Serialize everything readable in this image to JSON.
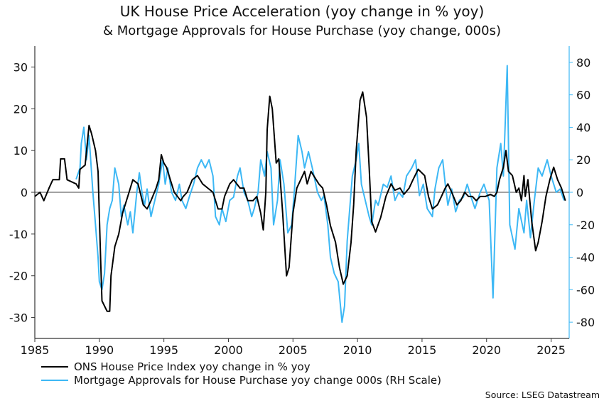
{
  "chart_data": {
    "type": "line",
    "title": "UK House Price Acceleration (yoy change in % yoy)",
    "subtitle": "& Mortgage Approvals for House Purchase (yoy change, 000s)",
    "xlabel": "",
    "ylabel": "",
    "xlim": [
      1985,
      2026.4
    ],
    "ylim_left": [
      -35,
      35
    ],
    "ylim_right": [
      -90,
      90
    ],
    "x_ticks": [
      "1985",
      "1990",
      "1995",
      "2000",
      "2005",
      "2010",
      "2015",
      "2020",
      "2025"
    ],
    "y_ticks_left": [
      "30",
      "20",
      "10",
      "0",
      "-10",
      "-20",
      "-30"
    ],
    "y_ticks_right": [
      "80",
      "60",
      "40",
      "20",
      "0",
      "-20",
      "-40",
      "-60",
      "-80"
    ],
    "legend_position": "bottom-left",
    "source": "Source: LSEG Datastream",
    "colors": {
      "left": "#000000",
      "right": "#3db8f5"
    },
    "series": [
      {
        "name": "ONS House Price Index yoy change in % yoy",
        "axis": "left",
        "points": [
          [
            1985.0,
            -1
          ],
          [
            1985.4,
            0
          ],
          [
            1985.7,
            -2
          ],
          [
            1986.1,
            1
          ],
          [
            1986.4,
            3
          ],
          [
            1986.9,
            3
          ],
          [
            1987.0,
            8
          ],
          [
            1987.3,
            8
          ],
          [
            1987.5,
            3
          ],
          [
            1988.2,
            2
          ],
          [
            1988.4,
            1
          ],
          [
            1988.5,
            5.5
          ],
          [
            1988.9,
            6.5
          ],
          [
            1989.2,
            16
          ],
          [
            1989.4,
            14
          ],
          [
            1989.7,
            10
          ],
          [
            1989.9,
            5
          ],
          [
            1990.1,
            -16
          ],
          [
            1990.2,
            -26
          ],
          [
            1990.6,
            -28.5
          ],
          [
            1990.8,
            -28.5
          ],
          [
            1990.9,
            -20
          ],
          [
            1991.2,
            -13
          ],
          [
            1991.5,
            -10
          ],
          [
            1991.8,
            -5
          ],
          [
            1992.3,
            0
          ],
          [
            1992.6,
            3
          ],
          [
            1993.0,
            2
          ],
          [
            1993.4,
            -3
          ],
          [
            1993.7,
            -4
          ],
          [
            1994.0,
            -2
          ],
          [
            1994.4,
            1
          ],
          [
            1994.6,
            3
          ],
          [
            1994.8,
            9
          ],
          [
            1995.0,
            7
          ],
          [
            1995.2,
            6
          ],
          [
            1995.5,
            3
          ],
          [
            1995.8,
            0
          ],
          [
            1996.3,
            -2
          ],
          [
            1996.5,
            -1
          ],
          [
            1996.8,
            0
          ],
          [
            1997.2,
            3
          ],
          [
            1997.6,
            4
          ],
          [
            1998.0,
            2
          ],
          [
            1998.4,
            1
          ],
          [
            1998.8,
            0
          ],
          [
            1999.2,
            -4
          ],
          [
            1999.5,
            -4
          ],
          [
            1999.7,
            -1
          ],
          [
            2000.1,
            2
          ],
          [
            2000.4,
            3
          ],
          [
            2000.9,
            1
          ],
          [
            2001.2,
            1
          ],
          [
            2001.5,
            -2
          ],
          [
            2001.9,
            -2
          ],
          [
            2002.2,
            -1
          ],
          [
            2002.5,
            -5
          ],
          [
            2002.7,
            -9
          ],
          [
            2002.9,
            0
          ],
          [
            2003.0,
            15
          ],
          [
            2003.2,
            23
          ],
          [
            2003.4,
            20
          ],
          [
            2003.7,
            7
          ],
          [
            2003.9,
            8
          ],
          [
            2004.2,
            -5
          ],
          [
            2004.5,
            -20
          ],
          [
            2004.7,
            -18
          ],
          [
            2005.0,
            -5
          ],
          [
            2005.3,
            1
          ],
          [
            2005.6,
            3
          ],
          [
            2005.9,
            5
          ],
          [
            2006.1,
            2
          ],
          [
            2006.4,
            5
          ],
          [
            2006.8,
            3
          ],
          [
            2007.0,
            2
          ],
          [
            2007.3,
            1
          ],
          [
            2007.6,
            -3
          ],
          [
            2007.9,
            -8
          ],
          [
            2008.3,
            -12
          ],
          [
            2008.6,
            -18
          ],
          [
            2008.9,
            -22
          ],
          [
            2009.2,
            -20
          ],
          [
            2009.5,
            -12
          ],
          [
            2009.7,
            -3
          ],
          [
            2009.9,
            10
          ],
          [
            2010.2,
            22
          ],
          [
            2010.4,
            24
          ],
          [
            2010.7,
            18
          ],
          [
            2010.9,
            6
          ],
          [
            2011.1,
            -7
          ],
          [
            2011.4,
            -9.5
          ],
          [
            2011.8,
            -6
          ],
          [
            2012.2,
            -1
          ],
          [
            2012.6,
            2
          ],
          [
            2012.9,
            0.5
          ],
          [
            2013.3,
            1
          ],
          [
            2013.6,
            -0.5
          ],
          [
            2014.0,
            1
          ],
          [
            2014.3,
            3
          ],
          [
            2014.7,
            5.5
          ],
          [
            2015.2,
            4
          ],
          [
            2015.5,
            -1
          ],
          [
            2015.8,
            -4
          ],
          [
            2016.2,
            -3
          ],
          [
            2016.5,
            -1
          ],
          [
            2016.8,
            1
          ],
          [
            2017.0,
            2
          ],
          [
            2017.3,
            0
          ],
          [
            2017.7,
            -3
          ],
          [
            2018.0,
            -2
          ],
          [
            2018.3,
            0
          ],
          [
            2018.6,
            -1
          ],
          [
            2018.9,
            -1
          ],
          [
            2019.2,
            -2
          ],
          [
            2019.5,
            -1
          ],
          [
            2019.9,
            -1
          ],
          [
            2020.3,
            -0.5
          ],
          [
            2020.6,
            -1
          ],
          [
            2020.8,
            0
          ],
          [
            2021.0,
            3
          ],
          [
            2021.3,
            6
          ],
          [
            2021.5,
            10
          ],
          [
            2021.7,
            5
          ],
          [
            2022.0,
            4
          ],
          [
            2022.3,
            0
          ],
          [
            2022.5,
            1
          ],
          [
            2022.7,
            -2
          ],
          [
            2022.9,
            4
          ],
          [
            2023.0,
            -1
          ],
          [
            2023.2,
            3
          ],
          [
            2023.5,
            -7
          ],
          [
            2023.8,
            -14
          ],
          [
            2024.0,
            -12
          ],
          [
            2024.3,
            -7
          ],
          [
            2024.6,
            -1
          ],
          [
            2024.9,
            3
          ],
          [
            2025.2,
            6
          ],
          [
            2025.5,
            3
          ],
          [
            2025.8,
            1
          ],
          [
            2026.1,
            -2
          ]
        ]
      },
      {
        "name": "Mortgage Approvals for House Purchase yoy change 000s (RH Scale)",
        "axis": "right",
        "points": [
          [
            1988.2,
            8
          ],
          [
            1988.5,
            15
          ],
          [
            1988.6,
            30
          ],
          [
            1988.8,
            40
          ],
          [
            1989.0,
            20
          ],
          [
            1989.2,
            35
          ],
          [
            1989.5,
            0
          ],
          [
            1989.7,
            -20
          ],
          [
            1989.9,
            -40
          ],
          [
            1990.0,
            -55
          ],
          [
            1990.2,
            -60
          ],
          [
            1990.4,
            -50
          ],
          [
            1990.6,
            -20
          ],
          [
            1990.8,
            -10
          ],
          [
            1991.0,
            -5
          ],
          [
            1991.2,
            15
          ],
          [
            1991.5,
            5
          ],
          [
            1991.7,
            -15
          ],
          [
            1991.9,
            -8
          ],
          [
            1992.2,
            -20
          ],
          [
            1992.4,
            -12
          ],
          [
            1992.6,
            -25
          ],
          [
            1992.9,
            0
          ],
          [
            1993.1,
            12
          ],
          [
            1993.3,
            0
          ],
          [
            1993.5,
            -8
          ],
          [
            1993.7,
            2
          ],
          [
            1994.0,
            -15
          ],
          [
            1994.3,
            -5
          ],
          [
            1994.6,
            5
          ],
          [
            1994.9,
            20
          ],
          [
            1995.1,
            5
          ],
          [
            1995.3,
            15
          ],
          [
            1995.6,
            0
          ],
          [
            1995.9,
            -5
          ],
          [
            1996.2,
            5
          ],
          [
            1996.4,
            -5
          ],
          [
            1996.7,
            -10
          ],
          [
            1997.0,
            -2
          ],
          [
            1997.3,
            5
          ],
          [
            1997.6,
            15
          ],
          [
            1997.9,
            20
          ],
          [
            1998.2,
            15
          ],
          [
            1998.5,
            20
          ],
          [
            1998.8,
            10
          ],
          [
            1999.0,
            -15
          ],
          [
            1999.3,
            -20
          ],
          [
            1999.5,
            -10
          ],
          [
            1999.8,
            -18
          ],
          [
            2000.1,
            -5
          ],
          [
            2000.4,
            -3
          ],
          [
            2000.7,
            10
          ],
          [
            2000.9,
            15
          ],
          [
            2001.2,
            0
          ],
          [
            2001.5,
            -5
          ],
          [
            2001.8,
            -15
          ],
          [
            2002.0,
            -10
          ],
          [
            2002.3,
            0
          ],
          [
            2002.5,
            20
          ],
          [
            2002.8,
            10
          ],
          [
            2003.0,
            25
          ],
          [
            2003.3,
            15
          ],
          [
            2003.5,
            -20
          ],
          [
            2003.8,
            -5
          ],
          [
            2004.0,
            20
          ],
          [
            2004.3,
            5
          ],
          [
            2004.6,
            -25
          ],
          [
            2004.9,
            -20
          ],
          [
            2005.1,
            0
          ],
          [
            2005.4,
            35
          ],
          [
            2005.7,
            25
          ],
          [
            2005.9,
            15
          ],
          [
            2006.2,
            25
          ],
          [
            2006.5,
            15
          ],
          [
            2006.9,
            0
          ],
          [
            2007.2,
            -5
          ],
          [
            2007.4,
            -2
          ],
          [
            2007.7,
            -20
          ],
          [
            2007.9,
            -40
          ],
          [
            2008.2,
            -50
          ],
          [
            2008.5,
            -55
          ],
          [
            2008.8,
            -80
          ],
          [
            2009.0,
            -70
          ],
          [
            2009.2,
            -30
          ],
          [
            2009.6,
            10
          ],
          [
            2009.9,
            20
          ],
          [
            2010.1,
            30
          ],
          [
            2010.3,
            5
          ],
          [
            2010.6,
            -5
          ],
          [
            2010.9,
            -15
          ],
          [
            2011.1,
            -20
          ],
          [
            2011.4,
            -5
          ],
          [
            2011.6,
            -8
          ],
          [
            2012.0,
            5
          ],
          [
            2012.3,
            3
          ],
          [
            2012.6,
            10
          ],
          [
            2012.9,
            -5
          ],
          [
            2013.2,
            0
          ],
          [
            2013.5,
            -3
          ],
          [
            2013.8,
            10
          ],
          [
            2014.2,
            15
          ],
          [
            2014.5,
            20
          ],
          [
            2014.8,
            -2
          ],
          [
            2015.1,
            5
          ],
          [
            2015.4,
            -10
          ],
          [
            2015.8,
            -15
          ],
          [
            2016.0,
            2
          ],
          [
            2016.3,
            15
          ],
          [
            2016.6,
            20
          ],
          [
            2016.8,
            5
          ],
          [
            2017.0,
            -8
          ],
          [
            2017.3,
            2
          ],
          [
            2017.6,
            -12
          ],
          [
            2017.9,
            -5
          ],
          [
            2018.2,
            -3
          ],
          [
            2018.5,
            5
          ],
          [
            2018.8,
            -3
          ],
          [
            2019.1,
            -10
          ],
          [
            2019.5,
            0
          ],
          [
            2019.8,
            5
          ],
          [
            2020.0,
            0
          ],
          [
            2020.2,
            -5
          ],
          [
            2020.5,
            -65
          ],
          [
            2020.8,
            15
          ],
          [
            2021.1,
            30
          ],
          [
            2021.3,
            10
          ],
          [
            2021.6,
            78
          ],
          [
            2021.8,
            -20
          ],
          [
            2022.2,
            -35
          ],
          [
            2022.5,
            -10
          ],
          [
            2022.9,
            -25
          ],
          [
            2023.1,
            -5
          ],
          [
            2023.4,
            -28
          ],
          [
            2023.7,
            -5
          ],
          [
            2024.0,
            15
          ],
          [
            2024.3,
            10
          ],
          [
            2024.7,
            20
          ],
          [
            2025.0,
            10
          ],
          [
            2025.4,
            0
          ],
          [
            2025.7,
            2
          ],
          [
            2026.0,
            -5
          ]
        ]
      }
    ]
  }
}
